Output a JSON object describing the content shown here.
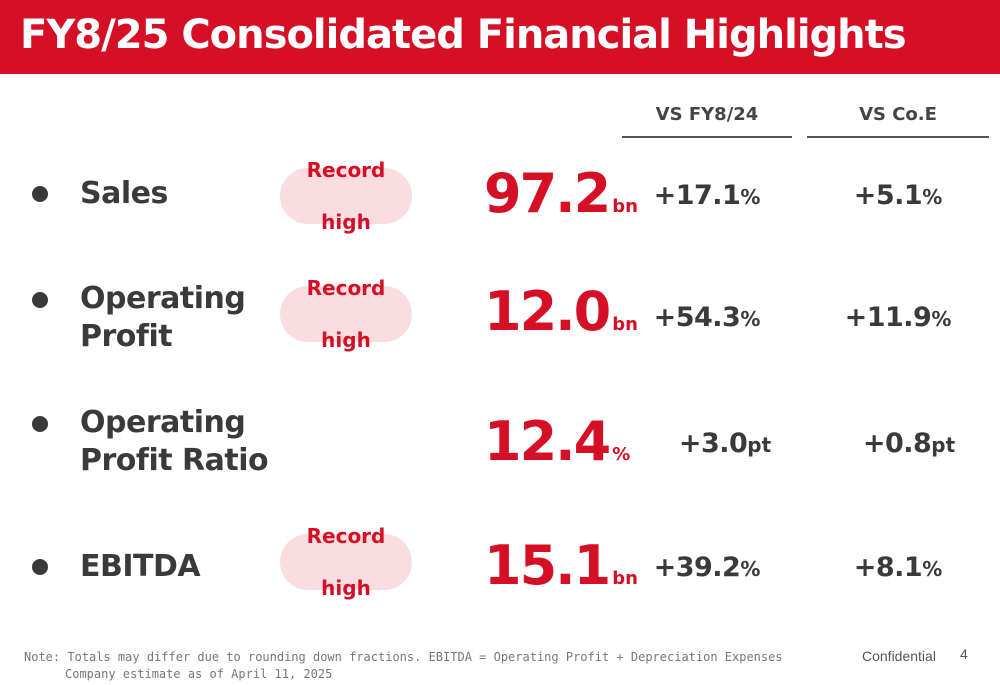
{
  "header": {
    "title": "FY8/25 Consolidated Financial Highlights"
  },
  "columns": {
    "vs_prev": "VS FY8/24",
    "vs_est": "VS Co.E"
  },
  "badge_text": {
    "line1": "Record",
    "line2": "high"
  },
  "rows": [
    {
      "label_line1": "Sales",
      "label_line2": "",
      "record_high": true,
      "value": "97.2",
      "unit": "bn",
      "vs_prev": "+17.1",
      "vs_prev_unit": "%",
      "vs_est": "+5.1",
      "vs_est_unit": "%"
    },
    {
      "label_line1": "Operating",
      "label_line2": "Profit",
      "record_high": true,
      "value": "12.0",
      "unit": "bn",
      "vs_prev": "+54.3",
      "vs_prev_unit": "%",
      "vs_est": "+11.9",
      "vs_est_unit": "%"
    },
    {
      "label_line1": "Operating",
      "label_line2": "Profit Ratio",
      "record_high": false,
      "value": "12.4",
      "unit": "%",
      "vs_prev": "+3.0",
      "vs_prev_unit": "pt",
      "vs_est": "+0.8",
      "vs_est_unit": "pt"
    },
    {
      "label_line1": "EBITDA",
      "label_line2": "",
      "record_high": true,
      "value": "15.1",
      "unit": "bn",
      "vs_prev": "+39.2",
      "vs_prev_unit": "%",
      "vs_est": "+8.1",
      "vs_est_unit": "%"
    }
  ],
  "footer": {
    "note_line1": "Note: Totals may differ due to rounding down fractions.   EBITDA = Operating Profit + Depreciation Expenses",
    "note_line2": "Company estimate as of April 11, 2025",
    "confidential": "Confidential",
    "page_number": "4"
  },
  "colors": {
    "brand_red": "#d50f25",
    "badge_bg": "#f9dde0",
    "text_dark": "#3a3a3a"
  }
}
